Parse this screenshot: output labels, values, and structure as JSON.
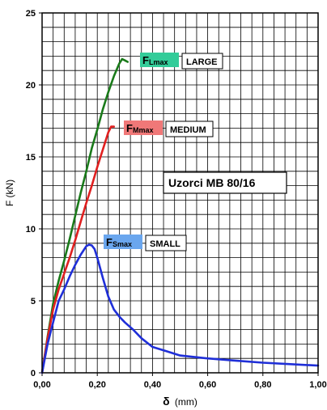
{
  "chart_data": {
    "type": "line",
    "title": "Uzorci MB 80/16",
    "xlabel": {
      "symbol": "δ",
      "unit": "(mm)"
    },
    "ylabel": "F (kN)",
    "xlim": [
      0,
      1.0
    ],
    "ylim": [
      0,
      25
    ],
    "x_major_ticks": [
      0,
      0.2,
      0.4,
      0.6,
      0.8,
      1.0
    ],
    "x_tick_labels": [
      "0,00",
      "0,20",
      "0,40",
      "0,60",
      "0,80",
      "1,00"
    ],
    "y_major_ticks": [
      0,
      5,
      10,
      15,
      20,
      25
    ],
    "y_tick_labels": [
      "0",
      "5",
      "10",
      "15",
      "20",
      "25"
    ],
    "grid": true,
    "grid_minor_x": 0.04,
    "grid_minor_y": 1,
    "series": [
      {
        "name": "LARGE",
        "color": "#1a7a1a",
        "x": [
          0,
          0.02,
          0.04,
          0.06,
          0.08,
          0.1,
          0.12,
          0.14,
          0.16,
          0.18,
          0.2,
          0.22,
          0.24,
          0.26,
          0.28,
          0.29,
          0.3,
          0.31
        ],
        "y": [
          0,
          2.5,
          4.8,
          6.4,
          7.8,
          9.3,
          10.9,
          12.5,
          14.0,
          15.6,
          16.9,
          18.3,
          19.5,
          20.6,
          21.5,
          21.8,
          21.7,
          21.6
        ]
      },
      {
        "name": "MEDIUM",
        "color": "#e02020",
        "x": [
          0,
          0.02,
          0.04,
          0.06,
          0.08,
          0.1,
          0.12,
          0.14,
          0.16,
          0.18,
          0.2,
          0.22,
          0.24,
          0.25,
          0.26
        ],
        "y": [
          0,
          2.4,
          4.4,
          5.8,
          6.9,
          8.0,
          9.2,
          10.5,
          11.8,
          13.0,
          14.3,
          15.5,
          16.7,
          17.1,
          17.1
        ]
      },
      {
        "name": "SMALL",
        "color": "#1f2fd8",
        "x": [
          0,
          0.02,
          0.04,
          0.06,
          0.08,
          0.1,
          0.12,
          0.14,
          0.16,
          0.17,
          0.18,
          0.19,
          0.2,
          0.22,
          0.24,
          0.26,
          0.28,
          0.3,
          0.33,
          0.36,
          0.4,
          0.45,
          0.5,
          0.6,
          0.7,
          0.8,
          0.9,
          1.0
        ],
        "y": [
          0,
          2.0,
          3.5,
          5.0,
          5.8,
          6.7,
          7.5,
          8.2,
          8.8,
          8.9,
          8.85,
          8.6,
          8.0,
          6.6,
          5.3,
          4.4,
          3.9,
          3.5,
          3.0,
          2.4,
          1.8,
          1.5,
          1.2,
          1.0,
          0.85,
          0.7,
          0.6,
          0.5
        ]
      }
    ],
    "annotations": [
      {
        "main": "F",
        "sub": "Lmax",
        "color": "#33cc99",
        "label": "LARGE",
        "series": "LARGE"
      },
      {
        "main": "F",
        "sub": "Mmax",
        "color": "#f07878",
        "label": "MEDIUM",
        "series": "MEDIUM"
      },
      {
        "main": "F",
        "sub": "Smax",
        "color": "#6aa6ee",
        "label": "SMALL",
        "series": "SMALL"
      }
    ]
  }
}
